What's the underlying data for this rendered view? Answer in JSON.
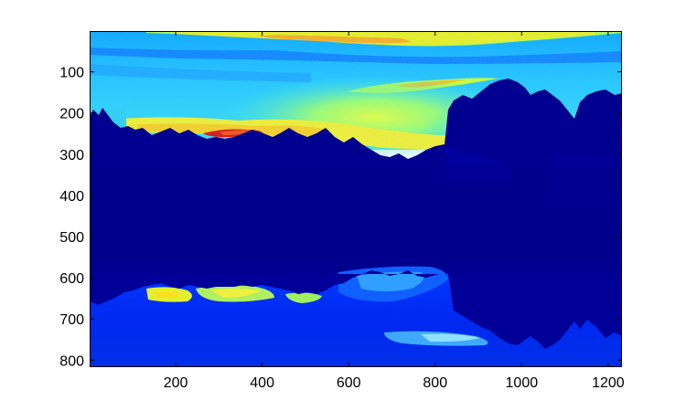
{
  "chart_data": {
    "type": "heatmap",
    "description_source": "image displayed with jet colormap (imagesc)",
    "colormap": "jet",
    "x_ticks": [
      200,
      400,
      600,
      800,
      1000,
      1200
    ],
    "y_ticks": [
      100,
      200,
      300,
      400,
      500,
      600,
      700,
      800
    ],
    "x_tick_labels": [
      "200",
      "400",
      "600",
      "800",
      "1000",
      "1200"
    ],
    "y_tick_labels": [
      "100",
      "200",
      "300",
      "400",
      "500",
      "600",
      "700",
      "800"
    ],
    "xlim": [
      1,
      1232
    ],
    "ylim": [
      1,
      817
    ],
    "y_direction": "reverse",
    "grid": false,
    "title": "",
    "xlabel": "",
    "ylabel": ""
  },
  "colors": {
    "axes_edge": "#000000",
    "figure_background": "#ffffff"
  }
}
